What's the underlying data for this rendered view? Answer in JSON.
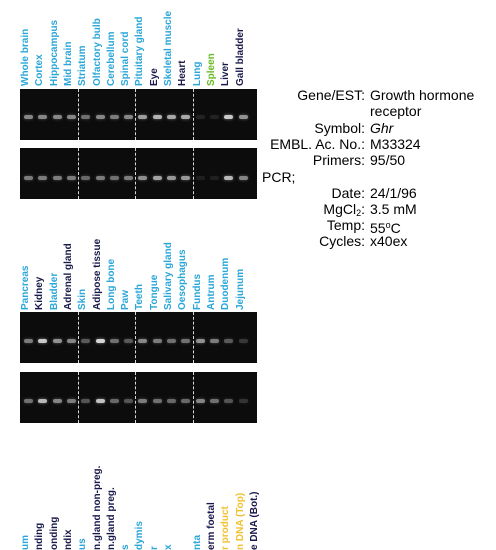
{
  "panel1": {
    "lanes": [
      {
        "name": "Whole brain",
        "color": "#2aa6d8",
        "intensity": 0.55
      },
      {
        "name": "Cortex",
        "color": "#2aa6d8",
        "intensity": 0.55
      },
      {
        "name": "Hippocampus",
        "color": "#2aa6d8",
        "intensity": 0.55
      },
      {
        "name": "Mid brain",
        "color": "#2aa6d8",
        "intensity": 0.55
      },
      {
        "name": "Striatum",
        "color": "#2aa6d8",
        "intensity": 0.45
      },
      {
        "name": "Olfactory bulb",
        "color": "#2aa6d8",
        "intensity": 0.55
      },
      {
        "name": "Cerebellum",
        "color": "#2aa6d8",
        "intensity": 0.5
      },
      {
        "name": "Spinal cord",
        "color": "#2aa6d8",
        "intensity": 0.55
      },
      {
        "name": "Pituitary gland",
        "color": "#2aa6d8",
        "intensity": 0.65
      },
      {
        "name": "Eye",
        "color": "#1a1a4a",
        "intensity": 0.75
      },
      {
        "name": "Skeletal muscle",
        "color": "#2aa6d8",
        "intensity": 0.7
      },
      {
        "name": "Heart",
        "color": "#1a1a4a",
        "intensity": 0.7
      },
      {
        "name": "Lung",
        "color": "#2aa6d8",
        "intensity": 0.1
      },
      {
        "name": "Spleen",
        "color": "#66bb22",
        "intensity": 0.1
      },
      {
        "name": "Liver",
        "color": "#1a1a4a",
        "intensity": 0.85
      },
      {
        "name": "Gall bladder",
        "color": "#1a1a4a",
        "intensity": 0.6
      }
    ]
  },
  "panel2": {
    "lanes": [
      {
        "name": "Pancreas",
        "color": "#2aa6d8",
        "intensity": 0.5
      },
      {
        "name": "Kidney",
        "color": "#1a1a4a",
        "intensity": 0.85
      },
      {
        "name": "Bladder",
        "color": "#2aa6d8",
        "intensity": 0.6
      },
      {
        "name": "Adrenal gland",
        "color": "#1a1a4a",
        "intensity": 0.55
      },
      {
        "name": "Skin",
        "color": "#2aa6d8",
        "intensity": 0.35
      },
      {
        "name": "Adipose tissue",
        "color": "#1a1a4a",
        "intensity": 0.9
      },
      {
        "name": "Long bone",
        "color": "#2aa6d8",
        "intensity": 0.45
      },
      {
        "name": "Paw",
        "color": "#2aa6d8",
        "intensity": 0.35
      },
      {
        "name": "Teeth",
        "color": "#2aa6d8",
        "intensity": 0.55
      },
      {
        "name": "Tongue",
        "color": "#2aa6d8",
        "intensity": 0.5
      },
      {
        "name": "Salivary gland",
        "color": "#2aa6d8",
        "intensity": 0.45
      },
      {
        "name": "Oesophagus",
        "color": "#2aa6d8",
        "intensity": 0.45
      },
      {
        "name": "Fundus",
        "color": "#2aa6d8",
        "intensity": 0.6
      },
      {
        "name": "Antrum",
        "color": "#2aa6d8",
        "intensity": 0.5
      },
      {
        "name": "Duodenum",
        "color": "#2aa6d8",
        "intensity": 0.35
      },
      {
        "name": "Jejunum",
        "color": "#2aa6d8",
        "intensity": 0.2
      }
    ]
  },
  "panel3": {
    "lanes": [
      {
        "name": "um",
        "color": "#2aa6d8"
      },
      {
        "name": "nding",
        "color": "#1a1a4a"
      },
      {
        "name": "onding",
        "color": "#1a1a4a"
      },
      {
        "name": "ndix",
        "color": "#1a1a4a"
      },
      {
        "name": "us",
        "color": "#2aa6d8"
      },
      {
        "name": "n.gland non-preg.",
        "color": "#1a1a4a"
      },
      {
        "name": "n.gland preg.",
        "color": "#1a1a4a"
      },
      {
        "name": "s",
        "color": "#2aa6d8"
      },
      {
        "name": "dymis",
        "color": "#2aa6d8"
      },
      {
        "name": "r",
        "color": "#2aa6d8"
      },
      {
        "name": "x",
        "color": "#2aa6d8"
      },
      {
        "name": "",
        "color": "#2aa6d8"
      },
      {
        "name": "nta",
        "color": "#2aa6d8"
      },
      {
        "name": "erm foetal",
        "color": "#1a1a4a"
      },
      {
        "name": "r product",
        "color": "#f2c12e"
      },
      {
        "name": "n DNA (Top)",
        "color": "#f2c12e"
      },
      {
        "name": "e DNA (Bot.)",
        "color": "#1a1a4a"
      }
    ]
  },
  "info": {
    "gene_label": "Gene/EST:",
    "gene_value": "Growth hormone receptor",
    "symbol_label": "Symbol:",
    "symbol_value": "Ghr",
    "embl_label": "EMBL. Ac. No.:",
    "embl_value": "M33324",
    "primers_label": "Primers:",
    "primers_value": "95/50",
    "pcr_label": "PCR;",
    "date_label": "Date:",
    "date_value": "24/1/96",
    "mgcl_label": "MgCl",
    "mgcl_sub": "2",
    "mgcl_colon": ":",
    "mgcl_value": "3.5 mM",
    "temp_label": "Temp:",
    "temp_value_num": "55",
    "temp_value_sup": "o",
    "temp_value_unit": "C",
    "cycles_label": "Cycles:",
    "cycles_value": "x40ex"
  }
}
